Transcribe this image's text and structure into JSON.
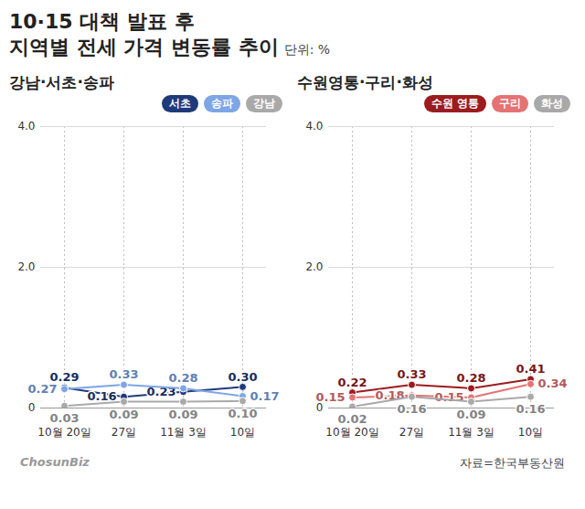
{
  "title": [
    "10·15 대책 발표 후",
    "지역별 전세 가격 변동률 추이"
  ],
  "subtitle": "단위: %",
  "source": "자료=한국부동산원",
  "credit": "ChosunBiz",
  "chart_data": [
    {
      "type": "line",
      "title": "강남·서초·송파",
      "categories": [
        "10월 20일",
        "27일",
        "11월 3일",
        "10일"
      ],
      "series": [
        {
          "name": "서초",
          "color": "#1f3a7a",
          "values": [
            0.29,
            0.16,
            0.23,
            0.3
          ],
          "value_labels": [
            "0.29",
            "0.16",
            "0.23",
            "0.30"
          ]
        },
        {
          "name": "송파",
          "color": "#7ea5e6",
          "values": [
            0.27,
            0.33,
            0.28,
            0.17
          ],
          "value_labels": [
            "0.27",
            "0.33",
            "0.28",
            "0.17"
          ]
        },
        {
          "name": "강남",
          "color": "#a9a9a9",
          "values": [
            0.03,
            0.09,
            0.09,
            0.1
          ],
          "value_labels": [
            "0.03",
            "0.09",
            "0.09",
            "0.10"
          ]
        }
      ],
      "ylim": [
        0,
        4
      ],
      "yticks": [
        0,
        {
          "value": 2,
          "label": "2.0"
        },
        {
          "value": 4,
          "label": "4.0"
        }
      ],
      "grid": true,
      "legend": "top-right",
      "data_labels": true,
      "marker": "circle"
    },
    {
      "type": "line",
      "title": "수원영통·구리·화성",
      "categories": [
        "10월 20일",
        "27일",
        "11월 3일",
        "10일"
      ],
      "series": [
        {
          "name": "수원 영통",
          "color": "#9b1c1f",
          "values": [
            0.22,
            0.33,
            0.28,
            0.41
          ],
          "value_labels": [
            "0.22",
            "0.33",
            "0.28",
            "0.41"
          ]
        },
        {
          "name": "구리",
          "color": "#e57373",
          "values": [
            0.15,
            0.18,
            0.15,
            0.34
          ],
          "value_labels": [
            "0.15",
            "0.18",
            "0.15",
            "0.34"
          ]
        },
        {
          "name": "화성",
          "color": "#a9a9a9",
          "values": [
            0.02,
            0.16,
            0.09,
            0.16
          ],
          "value_labels": [
            "0.02",
            "0.16",
            "0.09",
            "0.16"
          ]
        }
      ],
      "ylim": [
        0,
        4
      ],
      "yticks": [
        0,
        {
          "value": 2,
          "label": "2.0"
        },
        {
          "value": 4,
          "label": "4.0"
        }
      ],
      "grid": true,
      "legend": "top-right",
      "data_labels": true,
      "marker": "circle"
    }
  ]
}
